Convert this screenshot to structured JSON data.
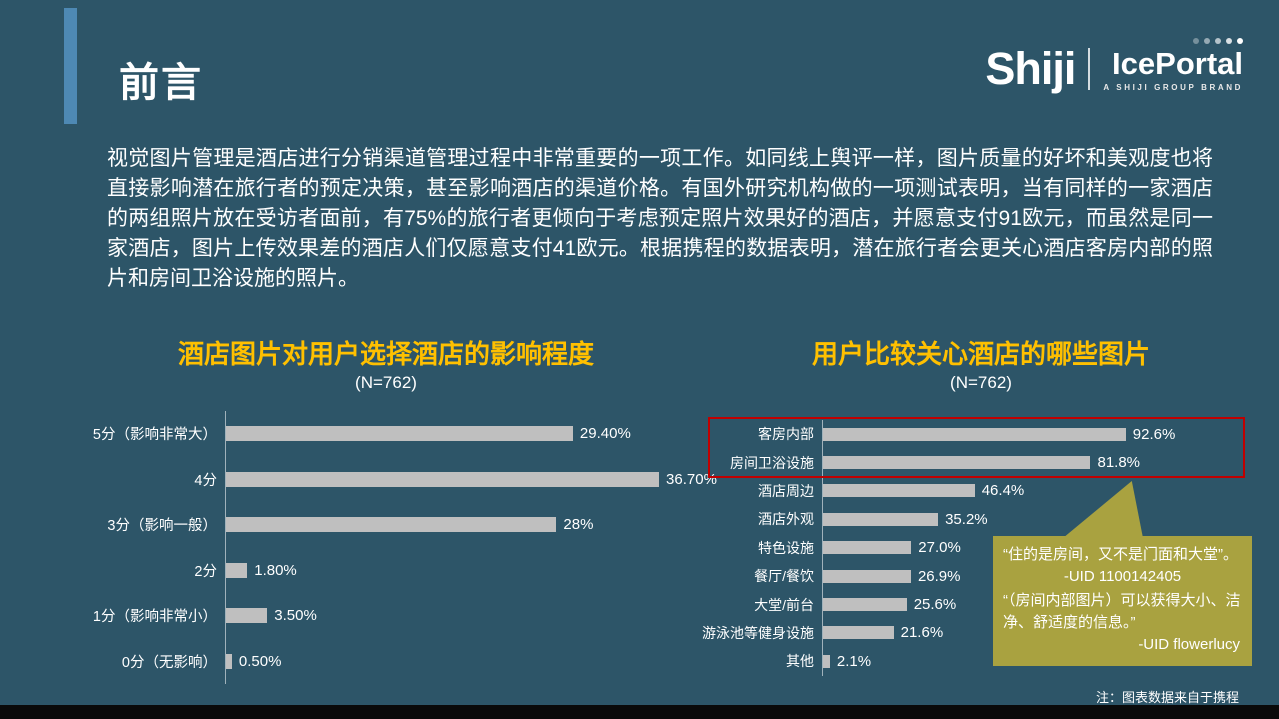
{
  "slide": {
    "title": "前言",
    "intro": "视觉图片管理是酒店进行分销渠道管理过程中非常重要的一项工作。如同线上舆评一样，图片质量的好坏和美观度也将直接影响潜在旅行者的预定决策，甚至影响酒店的渠道价格。有国外研究机构做的一项测试表明，当有同样的一家酒店的两组照片放在受访者面前，有75%的旅行者更倾向于考虑预定照片效果好的酒店，并愿意支付91欧元，而虽然是同一家酒店，图片上传效果差的酒店人们仅愿意支付41欧元。根据携程的数据表明，潜在旅行者会更关心酒店客房内部的照片和房间卫浴设施的照片。",
    "note": "注：图表数据来自于携程"
  },
  "logo": {
    "shiji": "Shiji",
    "iceportal": "IcePortal",
    "tagline": "A SHIJI GROUP BRAND"
  },
  "chart_data": [
    {
      "type": "bar",
      "orientation": "horizontal",
      "title": "酒店图片对用户选择酒店的影响程度",
      "subtitle": "(N=762)",
      "categories": [
        "5分（影响非常大）",
        "4分",
        "3分（影响一般）",
        "2分",
        "1分（影响非常小）",
        "0分（无影响）"
      ],
      "values": [
        29.4,
        36.7,
        28,
        1.8,
        3.5,
        0.5
      ],
      "value_labels": [
        "29.40%",
        "36.70%",
        "28%",
        "1.80%",
        "3.50%",
        "0.50%"
      ],
      "xlim": [
        0,
        40
      ],
      "bar_color": "#bfbfbf",
      "grid": false,
      "legend": false
    },
    {
      "type": "bar",
      "orientation": "horizontal",
      "title": "用户比较关心酒店的哪些图片",
      "subtitle": "(N=762)",
      "categories": [
        "客房内部",
        "房间卫浴设施",
        "酒店周边",
        "酒店外观",
        "特色设施",
        "餐厅/餐饮",
        "大堂/前台",
        "游泳池等健身设施",
        "其他"
      ],
      "values": [
        92.6,
        81.8,
        46.4,
        35.2,
        27.0,
        26.9,
        25.6,
        21.6,
        2.1
      ],
      "value_labels": [
        "92.6%",
        "81.8%",
        "46.4%",
        "35.2%",
        "27.0%",
        "26.9%",
        "25.6%",
        "21.6%",
        "2.1%"
      ],
      "xlim": [
        0,
        100
      ],
      "bar_color": "#bfbfbf",
      "grid": false,
      "legend": false,
      "highlight": {
        "rows": [
          "客房内部",
          "房间卫浴设施"
        ],
        "color": "#c00000"
      }
    }
  ],
  "callout": {
    "quote1": "“住的是房间，又不是门面和大堂”。",
    "uid1": "-UID  1100142405",
    "quote2": "“（房间内部图片）可以获得大小、洁净、舒适度的信息。”",
    "uid2": "-UID flowerlucy",
    "bg_color": "#a9a240"
  },
  "colors": {
    "background": "#2d5568",
    "accent_bar": "#4e89b4",
    "title_orange": "#ffc000",
    "bar_gray": "#bfbfbf",
    "highlight_red": "#c00000",
    "footer": "#0a0a0a"
  }
}
